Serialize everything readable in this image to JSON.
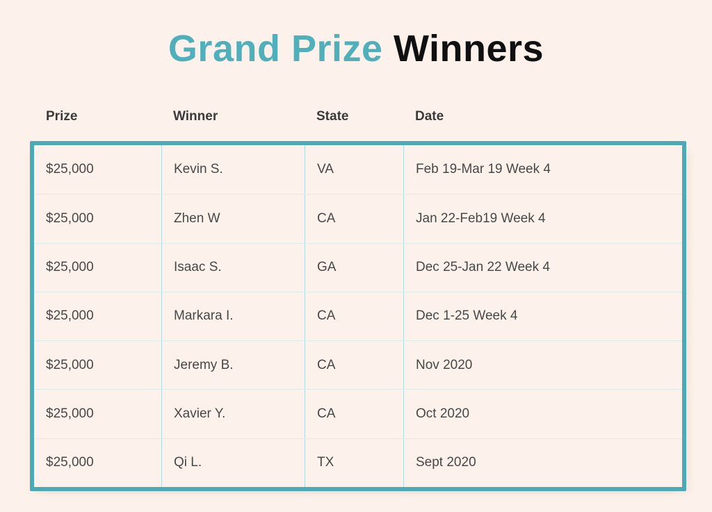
{
  "title": {
    "highlight": "Grand Prize",
    "rest": "Winners"
  },
  "colors": {
    "background": "#FDF2EB",
    "accent_teal_border": "#4BAAB6",
    "title_teal": "#4FB0BC",
    "title_black": "#101010",
    "header_text": "#3A3A3A",
    "cell_text": "#474747",
    "column_divider": "#ACD9DD",
    "row_divider": "#D9ECEA"
  },
  "table": {
    "columns": [
      "Prize",
      "Winner",
      "State",
      "Date"
    ],
    "rows": [
      {
        "prize": "$25,000",
        "winner": "Kevin S.",
        "state": "VA",
        "date": "Feb 19-Mar 19 Week 4"
      },
      {
        "prize": "$25,000",
        "winner": "Zhen W",
        "state": "CA",
        "date": "Jan 22-Feb19 Week 4"
      },
      {
        "prize": "$25,000",
        "winner": "Isaac S.",
        "state": "GA",
        "date": "Dec 25-Jan 22 Week 4"
      },
      {
        "prize": "$25,000",
        "winner": "Markara I.",
        "state": "CA",
        "date": "Dec 1-25 Week 4"
      },
      {
        "prize": "$25,000",
        "winner": "Jeremy B.",
        "state": "CA",
        "date": "Nov 2020"
      },
      {
        "prize": "$25,000",
        "winner": "Xavier Y.",
        "state": "CA",
        "date": "Oct 2020"
      },
      {
        "prize": "$25,000",
        "winner": "Qi L.",
        "state": "TX",
        "date": "Sept 2020"
      }
    ]
  }
}
